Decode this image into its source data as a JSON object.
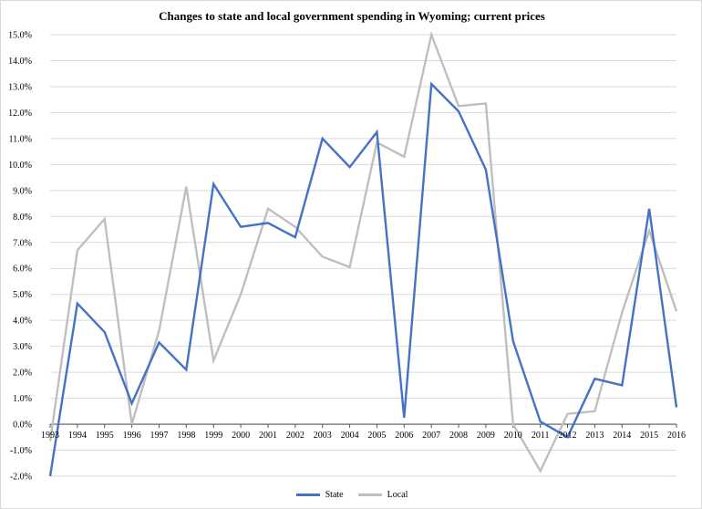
{
  "chart_data": {
    "type": "line",
    "title": "Changes to state and local government spending in Wyoming; current prices",
    "xlabel": "",
    "ylabel": "",
    "x": [
      "1993",
      "1994",
      "1995",
      "1996",
      "1997",
      "1998",
      "1999",
      "2000",
      "2001",
      "2002",
      "2003",
      "2004",
      "2005",
      "2006",
      "2007",
      "2008",
      "2009",
      "2010",
      "2011",
      "2012",
      "2013",
      "2014",
      "2015",
      "2016"
    ],
    "ylim": [
      -2.0,
      15.0
    ],
    "ytick_step": 1.0,
    "ytick_labels": [
      "-2.0%",
      "-1.0%",
      "0.0%",
      "1.0%",
      "2.0%",
      "3.0%",
      "4.0%",
      "5.0%",
      "6.0%",
      "7.0%",
      "8.0%",
      "9.0%",
      "10.0%",
      "11.0%",
      "12.0%",
      "13.0%",
      "14.0%",
      "15.0%"
    ],
    "grid": true,
    "legend_position": "bottom-center",
    "series": [
      {
        "name": "State",
        "color": "#4472c4",
        "values": [
          -2.0,
          4.65,
          3.55,
          0.8,
          3.15,
          2.1,
          9.25,
          7.6,
          7.75,
          7.2,
          11.0,
          9.9,
          11.25,
          0.25,
          13.1,
          12.05,
          9.8,
          3.2,
          0.1,
          -0.5,
          1.75,
          1.5,
          8.3,
          0.65
        ]
      },
      {
        "name": "Local",
        "color": "#bfbfbf",
        "values": [
          -0.65,
          6.7,
          7.9,
          0.0,
          3.6,
          9.15,
          2.45,
          5.0,
          8.3,
          7.6,
          6.45,
          6.05,
          10.85,
          10.3,
          15.0,
          12.25,
          12.35,
          0.0,
          -1.8,
          0.4,
          0.5,
          4.3,
          7.45,
          4.35
        ]
      }
    ]
  }
}
